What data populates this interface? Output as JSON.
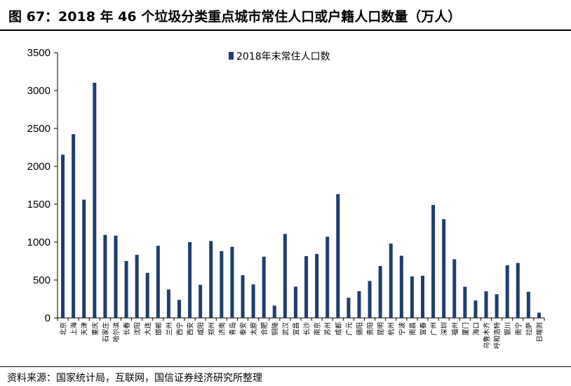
{
  "header": {
    "title": "图 67：2018 年 46 个垃圾分类重点城市常住人口或户籍人口数量（万人）"
  },
  "footer": {
    "source": "资料来源：国家统计局，互联网，国信证券经济研究所整理"
  },
  "colors": {
    "bar": "#1f3d6e",
    "axis": "#000000"
  },
  "chart_data": {
    "type": "bar",
    "title": "",
    "xlabel": "",
    "ylabel": "",
    "ylim": [
      0,
      3500
    ],
    "yticks": [
      0,
      500,
      1000,
      1500,
      2000,
      2500,
      3000,
      3500
    ],
    "grid": false,
    "legend_position": "top-center",
    "categories": [
      "北京",
      "上海",
      "天津",
      "重庆",
      "石家庄",
      "哈尔滨",
      "长春",
      "沈阳",
      "大连",
      "邯郸",
      "兰州",
      "西宁",
      "西安",
      "咸阳",
      "郑州",
      "济南",
      "青岛",
      "泰安",
      "太原",
      "合肥",
      "铜陵",
      "武汉",
      "宜昌",
      "长沙",
      "南京",
      "苏州",
      "成都",
      "广元",
      "德阳",
      "贵阳",
      "昆明",
      "杭州",
      "宁波",
      "南昌",
      "宜春",
      "广州",
      "深圳",
      "福州",
      "厦门",
      "海口",
      "乌鲁木齐",
      "呼和浩特",
      "银川",
      "南宁",
      "拉萨",
      "日喀则"
    ],
    "series": [
      {
        "name": "2018年末常住人口数",
        "values": [
          2154,
          2424,
          1560,
          3102,
          1095,
          1085,
          751,
          832,
          595,
          952,
          375,
          238,
          1000,
          437,
          1014,
          882,
          939,
          564,
          442,
          808,
          162,
          1108,
          413,
          816,
          844,
          1072,
          1633,
          266,
          353,
          488,
          685,
          981,
          820,
          547,
          556,
          1490,
          1303,
          774,
          411,
          230,
          351,
          313,
          695,
          725,
          345,
          70
        ]
      }
    ]
  }
}
